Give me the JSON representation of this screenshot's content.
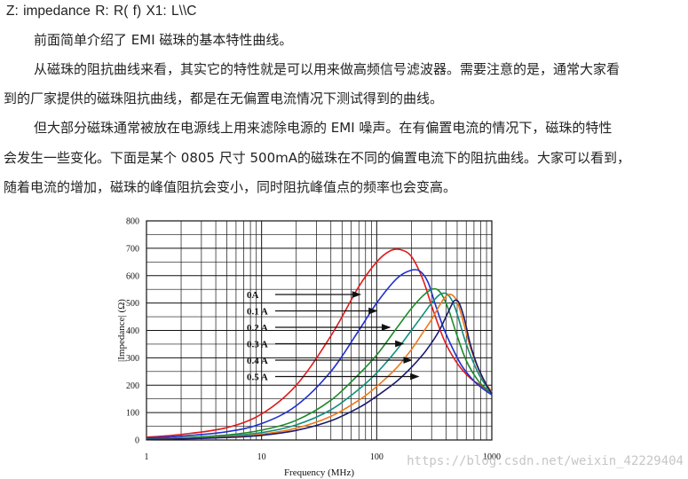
{
  "article": {
    "formula": "Z: impedance   R: R( f)  X1: L\\\\C",
    "p1": "前面简单介绍了 EMI 磁珠的基本特性曲线。",
    "p2_line1": "从磁珠的阻抗曲线来看，其实它的特性就是可以用来做高频信号滤波器。需要注意的是，通常大家看",
    "p2_line2": "到的厂家提供的磁珠阻抗曲线，都是在无偏置电流情况下测试得到的曲线。",
    "p3_line1": "但大部分磁珠通常被放在电源线上用来滤除电源的 EMI 噪声。在有偏置电流的情况下，磁珠的特性",
    "p3_line2": "会发生一些变化。下面是某个 0805 尺寸 500mA的磁珠在不同的偏置电流下的阻抗曲线。大家可以看到，",
    "p3_line3": "随着电流的增加，磁珠的峰值阻抗会变小，同时阻抗峰值点的频率也会变高。"
  },
  "watermark": "https://blog.csdn.net/weixin_42229404",
  "chart_data": {
    "type": "line",
    "title": "",
    "xlabel": "Frequency (MHz)",
    "ylabel": "|Impedance| (Ω)",
    "x_scale": "log",
    "xlim": [
      1,
      1000
    ],
    "ylim": [
      0,
      800
    ],
    "x_ticks": [
      "1",
      "10",
      "100",
      "1000"
    ],
    "y_ticks": [
      "0",
      "100",
      "200",
      "300",
      "400",
      "500",
      "600",
      "700",
      "800"
    ],
    "grid": true,
    "legend": "annotations with arrows, left of curves",
    "series": [
      {
        "name": "0A",
        "color": "#e11b1b",
        "x": [
          1,
          2,
          5,
          10,
          20,
          40,
          70,
          100,
          130,
          160,
          200,
          250,
          300,
          350,
          400,
          500,
          600,
          700,
          800,
          1000
        ],
        "y": [
          10,
          20,
          45,
          95,
          200,
          380,
          560,
          650,
          690,
          695,
          670,
          590,
          490,
          410,
          350,
          280,
          240,
          215,
          200,
          170
        ]
      },
      {
        "name": "0.1 A",
        "color": "#1f2fd0",
        "x": [
          1,
          2,
          5,
          10,
          20,
          40,
          70,
          100,
          150,
          200,
          240,
          280,
          320,
          380,
          450,
          550,
          700,
          850,
          1000
        ],
        "y": [
          7,
          14,
          30,
          60,
          125,
          250,
          400,
          500,
          590,
          620,
          615,
          575,
          500,
          410,
          340,
          270,
          215,
          185,
          165
        ]
      },
      {
        "name": "0.2 A",
        "color": "#1e8a2a",
        "x": [
          1,
          2,
          5,
          10,
          20,
          40,
          70,
          100,
          150,
          200,
          250,
          300,
          340,
          380,
          430,
          500,
          600,
          750,
          900,
          1000
        ],
        "y": [
          4,
          8,
          18,
          36,
          72,
          145,
          240,
          310,
          410,
          480,
          525,
          550,
          548,
          520,
          465,
          380,
          290,
          220,
          185,
          170
        ]
      },
      {
        "name": "0.3 A",
        "color": "#128f7c",
        "x": [
          1,
          2,
          5,
          10,
          20,
          40,
          70,
          100,
          150,
          200,
          250,
          300,
          350,
          400,
          450,
          500,
          600,
          750,
          900,
          1000
        ],
        "y": [
          3,
          6,
          14,
          27,
          55,
          110,
          185,
          245,
          330,
          400,
          455,
          500,
          530,
          535,
          510,
          460,
          350,
          250,
          195,
          175
        ]
      },
      {
        "name": "0.4 A",
        "color": "#f07818",
        "x": [
          1,
          2,
          5,
          10,
          20,
          40,
          70,
          100,
          150,
          200,
          250,
          300,
          350,
          400,
          450,
          500,
          550,
          650,
          800,
          1000
        ],
        "y": [
          2,
          5,
          11,
          21,
          43,
          86,
          145,
          195,
          265,
          330,
          390,
          440,
          490,
          525,
          530,
          505,
          450,
          340,
          240,
          175
        ]
      },
      {
        "name": "0.5 A",
        "color": "#1a1a6e",
        "x": [
          1,
          2,
          5,
          10,
          20,
          40,
          70,
          100,
          150,
          200,
          250,
          300,
          350,
          400,
          450,
          480,
          520,
          580,
          650,
          750,
          900,
          1000
        ],
        "y": [
          2,
          4,
          9,
          17,
          35,
          70,
          118,
          160,
          215,
          265,
          310,
          355,
          400,
          450,
          495,
          510,
          500,
          440,
          350,
          270,
          200,
          170
        ]
      }
    ]
  }
}
